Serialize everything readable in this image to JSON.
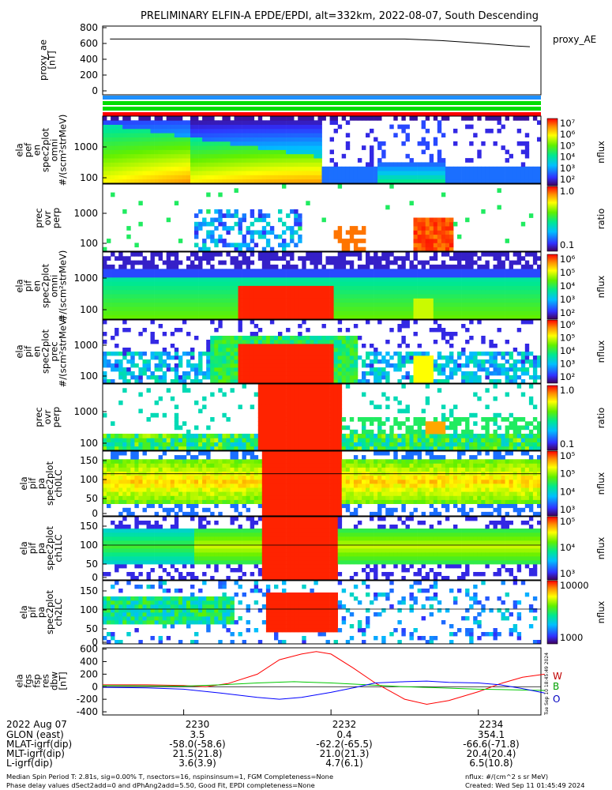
{
  "title": "PRELIMINARY ELFIN-A EPDE/EPDI, alt=332km, 2022-08-07, South Descending",
  "colors": {
    "red": "#ff0000",
    "green": "#00c800",
    "blue": "#0000ff",
    "frame": "#000000"
  },
  "flag_bars": [
    "#1e90ff",
    "#00dd00",
    "#00dd00",
    "#ff0000"
  ],
  "panels": [
    {
      "id": "proxy_ae",
      "ylabel": [
        "proxy_ae",
        "[nT]"
      ],
      "legend": "proxy_AE",
      "yticks": [
        "800",
        "600",
        "400",
        "200",
        "0"
      ]
    },
    {
      "id": "elf-omni",
      "ylabel": [
        "ela",
        "pef",
        "en",
        "spec2plot",
        "omni",
        "#/(scm²strMeV)"
      ],
      "yticks": [
        "1000",
        "100"
      ]
    },
    {
      "id": "elf-prec",
      "ylabel": [
        "prec",
        "ovr",
        "perp"
      ],
      "yticks": [
        "1000",
        "100"
      ]
    },
    {
      "id": "eli-omni",
      "ylabel": [
        "ela",
        "pif",
        "en",
        "spec2plot",
        "omni",
        "#/(scm²strMeV)"
      ],
      "yticks": [
        "1000",
        "100"
      ]
    },
    {
      "id": "eli-prec",
      "ylabel": [
        "ela",
        "pif",
        "en",
        "spec2plot",
        "prec",
        "#/(scm²strMeV)"
      ],
      "yticks": [
        "1000",
        "100"
      ]
    },
    {
      "id": "eli-ratio",
      "ylabel": [
        "prec",
        "ovr",
        "perp"
      ],
      "yticks": [
        "1000",
        "100"
      ]
    },
    {
      "id": "pa-ch0",
      "ylabel": [
        "ela",
        "pif",
        "pa",
        "spec2plot",
        "ch0LC"
      ],
      "yticks": [
        "150",
        "100",
        "50",
        "0"
      ]
    },
    {
      "id": "pa-ch1",
      "ylabel": [
        "ela",
        "pif",
        "pa",
        "spec2plot",
        "ch1LC"
      ],
      "yticks": [
        "150",
        "100",
        "50",
        "0"
      ]
    },
    {
      "id": "pa-ch2",
      "ylabel": [
        "ela",
        "pif",
        "pa",
        "spec2plot",
        "ch2LC"
      ],
      "yticks": [
        "150",
        "100",
        "50",
        "0"
      ]
    },
    {
      "id": "fgs",
      "ylabel": [
        "ela",
        "fgs",
        "fsp",
        "res",
        "dbw",
        "[nT]"
      ],
      "yticks": [
        "600",
        "400",
        "200",
        "0",
        "-200",
        "-400"
      ]
    }
  ],
  "colorbars": [
    {
      "labels": [
        "10⁷",
        "10⁶",
        "10⁵",
        "10⁴",
        "10³",
        "10²"
      ],
      "unit": "nflux"
    },
    {
      "labels": [
        "1.0",
        "0.1"
      ],
      "unit": "ratio"
    },
    {
      "labels": [
        "10⁶",
        "10⁵",
        "10⁴",
        "10³",
        "10²"
      ],
      "unit": "nflux"
    },
    {
      "labels": [
        "10⁶",
        "10⁵",
        "10⁴",
        "10³",
        "10²"
      ],
      "unit": "nflux"
    },
    {
      "labels": [
        "1.0",
        "0.1"
      ],
      "unit": "ratio"
    },
    {
      "labels": [
        "10⁵",
        "10⁵",
        "10⁴",
        "10³"
      ],
      "unit": "nflux"
    },
    {
      "labels": [
        "10⁵",
        "10⁴",
        "10³"
      ],
      "unit": "nflux"
    },
    {
      "labels": [
        "10000",
        "1000"
      ],
      "unit": "nflux"
    }
  ],
  "fgs_legend": [
    "W",
    "B",
    "O"
  ],
  "chart_data": {
    "type": "line",
    "proxy_ae": {
      "x": [
        2229.0,
        2231.0,
        2233.0,
        2233.5,
        2234.0,
        2234.5,
        2234.7
      ],
      "y": [
        690,
        690,
        690,
        670,
        640,
        605,
        595
      ],
      "ylim": [
        0,
        850
      ]
    },
    "fgs": {
      "ylim": [
        -450,
        620
      ],
      "series": [
        {
          "name": "W",
          "x": [
            2228.9,
            2229.5,
            2230.0,
            2230.3,
            2230.6,
            2231.0,
            2231.3,
            2231.6,
            2231.8,
            2232.0,
            2232.3,
            2232.6,
            2233.0,
            2233.3,
            2233.6,
            2234.0,
            2234.3,
            2234.6,
            2234.9
          ],
          "y": [
            30,
            30,
            20,
            0,
            50,
            200,
            430,
            520,
            560,
            520,
            300,
            60,
            -200,
            -280,
            -220,
            -80,
            50,
            150,
            200
          ]
        },
        {
          "name": "B",
          "x": [
            2228.9,
            2229.5,
            2230.0,
            2230.5,
            2231.0,
            2231.5,
            2232.0,
            2232.5,
            2233.0,
            2233.5,
            2234.0,
            2234.5,
            2234.9
          ],
          "y": [
            20,
            15,
            10,
            30,
            60,
            80,
            60,
            30,
            0,
            -20,
            -40,
            -50,
            -60
          ]
        },
        {
          "name": "O",
          "x": [
            2228.9,
            2229.5,
            2230.0,
            2230.5,
            2231.0,
            2231.3,
            2231.6,
            2232.0,
            2232.3,
            2232.6,
            2233.0,
            2233.3,
            2233.6,
            2234.0,
            2234.3,
            2234.6,
            2234.9
          ],
          "y": [
            -10,
            -20,
            -40,
            -100,
            -170,
            -200,
            -170,
            -90,
            -20,
            60,
            80,
            90,
            70,
            60,
            30,
            -30,
            -100
          ]
        }
      ]
    }
  },
  "time_axis": {
    "labels": [
      "2230",
      "2232",
      "2234"
    ]
  },
  "ephemeris": [
    {
      "label": "2022 Aug 07",
      "values": [
        "2230",
        "2232",
        "2234"
      ]
    },
    {
      "label": "GLON (east)",
      "values": [
        "3.5",
        "0.4",
        "354.1"
      ]
    },
    {
      "label": "MLAT-igrf(dip)",
      "values": [
        "-58.0(-58.6)",
        "-62.2(-65.5)",
        "-66.6(-71.8)"
      ]
    },
    {
      "label": "MLT-igrf(dip)",
      "values": [
        "21.5(21.8)",
        "21.0(21.3)",
        "20.4(20.4)"
      ]
    },
    {
      "label": "L-igrf(dip)",
      "values": [
        "3.6(3.9)",
        "4.7(6.1)",
        "6.5(10.8)"
      ]
    }
  ],
  "footer": {
    "line1_left": "Median Spin Period T: 2.81s, sig=0.00% T, nsectors=16, nspinsinsum=1, FGM Completeness=None",
    "line2_left": "Phase delay values dSect2add=0 and dPhAng2add=5.50, Good Fit, EPDI completeness=None",
    "line1_right": "nflux: #/(cm^2 s sr MeV)",
    "line2_right": "Created: Wed Sep 11 01:45:49 2024"
  },
  "side_stamp": "Tue Sep 10 18:45:49 2024"
}
